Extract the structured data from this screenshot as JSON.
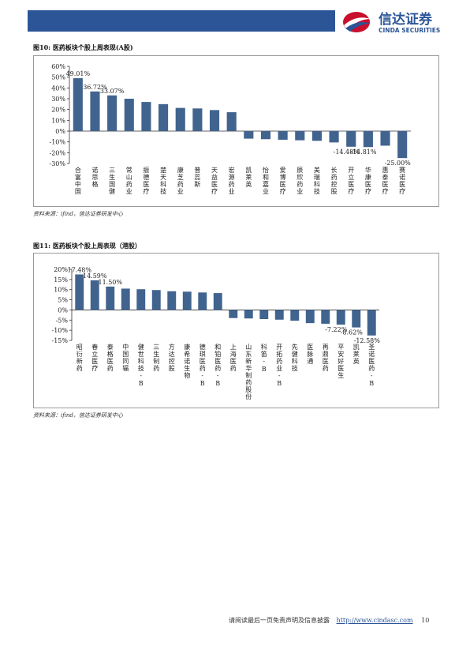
{
  "header": {
    "logo_cn": "信达证券",
    "logo_en": "CINDA SECURITIES"
  },
  "chart_data": [
    {
      "type": "bar",
      "title": "图10: 医药板块个股上周表现(A股)",
      "source": "资料来源：ifind，信达证券研发中心",
      "categories": [
        "合富中国",
        "诺思格",
        "三生国健",
        "常山药业",
        "振德医疗",
        "楚天科技",
        "康芝药业",
        "普蕊斯",
        "天益医疗",
        "宏源药业",
        "凯莱英",
        "怡和嘉业",
        "爱博医疗",
        "辰欣药业",
        "美瑞科技",
        "长药控股",
        "开立医疗",
        "华康医疗",
        "惠泰医疗",
        "赛诺医疗"
      ],
      "values": [
        49.01,
        36.72,
        33.07,
        30,
        27,
        25,
        21.5,
        21,
        19.5,
        17.5,
        -7,
        -7.5,
        -8,
        -8.5,
        -9,
        -10.5,
        -14.48,
        -14.81,
        -13.5,
        -25.0
      ],
      "value_labels": [
        "49.01%",
        "36.72%",
        "33.07%",
        null,
        null,
        null,
        null,
        null,
        null,
        null,
        null,
        null,
        null,
        null,
        null,
        null,
        "-14.48%",
        "-14.81%",
        null,
        "-25.00%"
      ],
      "color": "#41648f",
      "ylim": [
        -30,
        60
      ],
      "yticks": [
        {
          "value": -30,
          "label": "-30%"
        },
        {
          "value": -20,
          "label": "-20%"
        },
        {
          "value": -10,
          "label": "-10%"
        },
        {
          "value": 0,
          "label": "0%"
        },
        {
          "value": 10,
          "label": "10%"
        },
        {
          "value": 20,
          "label": "20%"
        },
        {
          "value": 30,
          "label": "30%"
        },
        {
          "value": 40,
          "label": "40%"
        },
        {
          "value": 50,
          "label": "50%"
        },
        {
          "value": 60,
          "label": "60%"
        }
      ],
      "grid": false
    },
    {
      "type": "bar",
      "title": "图11: 医药板块个股上周表现（港股）",
      "source": "资料来源：ifind，信达证券研发中心",
      "categories": [
        "昭衍新药",
        "春立医疗",
        "泰格医药",
        "中国同辐",
        "健世科技-B",
        "三生制药",
        "方达控股",
        "康希诺生物",
        "德琪医药-B",
        "和铂医药-B",
        "上海医药",
        "山东新华制药股份",
        "科笛-B",
        "开拓药业-B",
        "先健科技",
        "医脉通",
        "再鼎医药",
        "平安好医生",
        "凯莱英",
        "圣诺医药-B"
      ],
      "values": [
        17.48,
        14.59,
        11.5,
        10.5,
        10.2,
        9.8,
        9.2,
        9.0,
        8.6,
        8.3,
        -4.0,
        -4.2,
        -4.5,
        -4.8,
        -5.3,
        -6.5,
        -6.8,
        -7.22,
        -8.62,
        -12.58
      ],
      "value_labels": [
        "17.48%",
        "14.59%",
        "11.50%",
        null,
        null,
        null,
        null,
        null,
        null,
        null,
        null,
        null,
        null,
        null,
        null,
        null,
        null,
        "-7.22%",
        "-8.62%",
        "-12.58%"
      ],
      "color": "#41648f",
      "ylim": [
        -15,
        20
      ],
      "yticks": [
        {
          "value": -15,
          "label": "-15%"
        },
        {
          "value": -10,
          "label": "-10%"
        },
        {
          "value": -5,
          "label": "-5%"
        },
        {
          "value": 0,
          "label": "0%"
        },
        {
          "value": 5,
          "label": "5%"
        },
        {
          "value": 10,
          "label": "10%"
        },
        {
          "value": 15,
          "label": "15%"
        },
        {
          "value": 20,
          "label": "20%"
        }
      ],
      "grid": false
    }
  ],
  "footer": {
    "disclaimer": "请阅读最后一页免责声明及信息披露",
    "url": "http://www.cindasc.com",
    "page": "10"
  }
}
